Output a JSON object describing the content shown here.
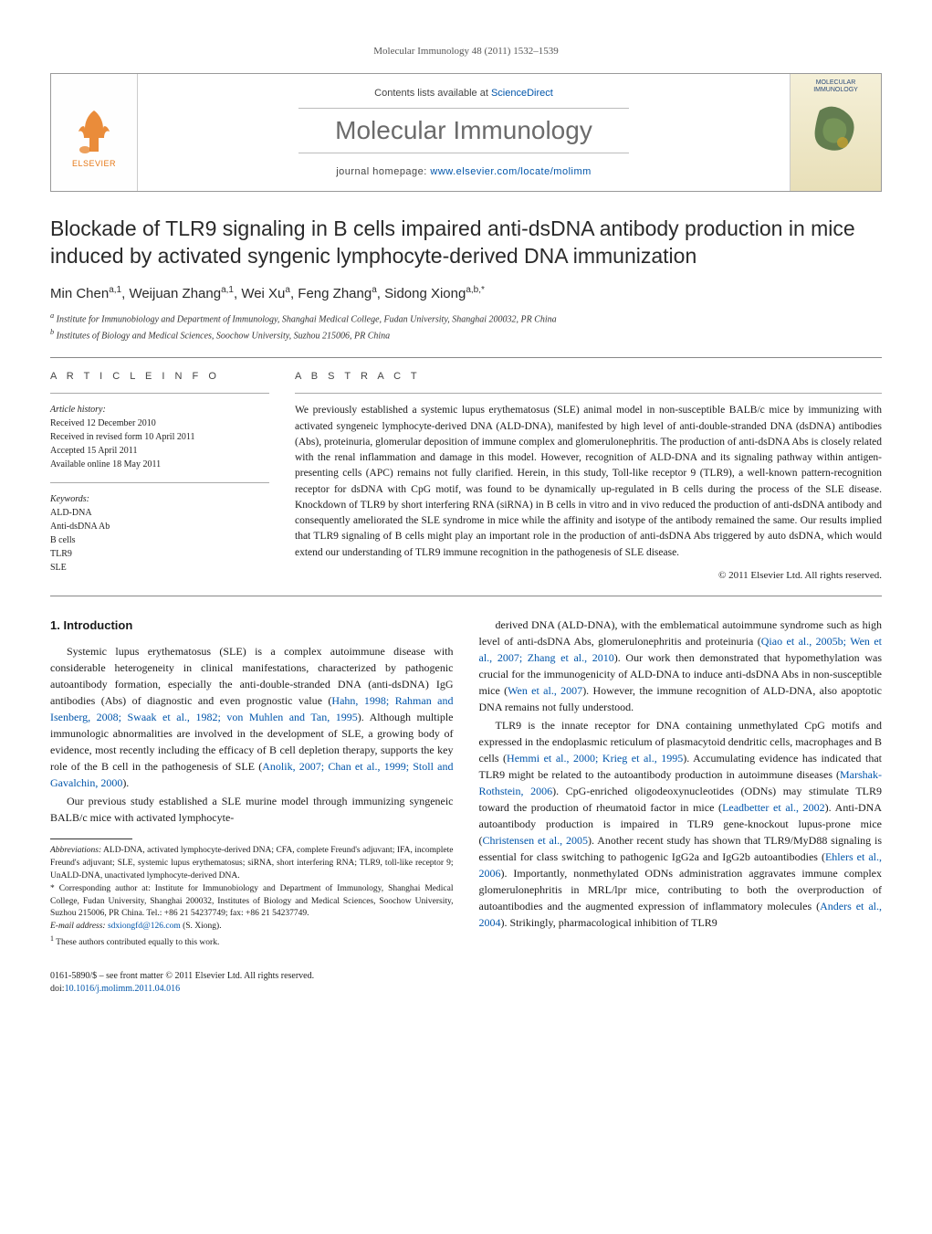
{
  "running_head": "Molecular Immunology 48 (2011) 1532–1539",
  "masthead": {
    "contents_prefix": "Contents lists available at ",
    "contents_link": "ScienceDirect",
    "journal": "Molecular Immunology",
    "homepage_prefix": "journal homepage: ",
    "homepage_url": "www.elsevier.com/locate/molimm",
    "publisher_word": "ELSEVIER",
    "cover_label": "MOLECULAR IMMUNOLOGY"
  },
  "colors": {
    "link": "#0055aa",
    "elsevier_orange": "#e67817",
    "rule": "#888888",
    "journal_gray": "#6b6b6b"
  },
  "title": "Blockade of TLR9 signaling in B cells impaired anti-dsDNA antibody production in mice induced by activated syngenic lymphocyte-derived DNA immunization",
  "authors_html": "Min Chen<sup>a,1</sup>, Weijuan Zhang<sup>a,1</sup>, Wei Xu<sup>a</sup>, Feng Zhang<sup>a</sup>, Sidong Xiong<sup>a,b,*</sup>",
  "affiliations": [
    "a Institute for Immunobiology and Department of Immunology, Shanghai Medical College, Fudan University, Shanghai 200032, PR China",
    "b Institutes of Biology and Medical Sciences, Soochow University, Suzhou 215006, PR China"
  ],
  "info": {
    "heading": "A R T I C L E   I N F O",
    "history_label": "Article history:",
    "history": [
      "Received 12 December 2010",
      "Received in revised form 10 April 2011",
      "Accepted 15 April 2011",
      "Available online 18 May 2011"
    ],
    "keywords_label": "Keywords:",
    "keywords": [
      "ALD-DNA",
      "Anti-dsDNA Ab",
      "B cells",
      "TLR9",
      "SLE"
    ]
  },
  "abstract": {
    "heading": "A B S T R A C T",
    "text": "We previously established a systemic lupus erythematosus (SLE) animal model in non-susceptible BALB/c mice by immunizing with activated syngeneic lymphocyte-derived DNA (ALD-DNA), manifested by high level of anti-double-stranded DNA (dsDNA) antibodies (Abs), proteinuria, glomerular deposition of immune complex and glomerulonephritis. The production of anti-dsDNA Abs is closely related with the renal inflammation and damage in this model. However, recognition of ALD-DNA and its signaling pathway within antigen-presenting cells (APC) remains not fully clarified. Herein, in this study, Toll-like receptor 9 (TLR9), a well-known pattern-recognition receptor for dsDNA with CpG motif, was found to be dynamically up-regulated in B cells during the process of the SLE disease. Knockdown of TLR9 by short interfering RNA (siRNA) in B cells in vitro and in vivo reduced the production of anti-dsDNA antibody and consequently ameliorated the SLE syndrome in mice while the affinity and isotype of the antibody remained the same. Our results implied that TLR9 signaling of B cells might play an important role in the production of anti-dsDNA Abs triggered by auto dsDNA, which would extend our understanding of TLR9 immune recognition in the pathogenesis of SLE disease.",
    "copyright": "© 2011 Elsevier Ltd. All rights reserved."
  },
  "body": {
    "h1": "1. Introduction",
    "p1a": "Systemic lupus erythematosus (SLE) is a complex autoimmune disease with considerable heterogeneity in clinical manifestations, characterized by pathogenic autoantibody formation, especially the anti-double-stranded DNA (anti-dsDNA) IgG antibodies (Abs) of diagnostic and even prognostic value (",
    "c1": "Hahn, 1998; Rahman and Isenberg, 2008; Swaak et al., 1982; von Muhlen and Tan, 1995",
    "p1b": "). Although multiple immunologic abnormalities are involved in the development of SLE, a growing body of evidence, most recently including the efficacy of B cell depletion therapy, supports the key role of the B cell in the pathogenesis of SLE (",
    "c2": "Anolik, 2007; Chan et al., 1999; Stoll and Gavalchin, 2000",
    "p1c": ").",
    "p2a": "Our previous study established a SLE murine model through immunizing syngeneic BALB/c mice with activated lymphocyte-",
    "p2b": "derived DNA (ALD-DNA), with the emblematical autoimmune syndrome such as high level of anti-dsDNA Abs, glomerulonephritis and proteinuria (",
    "c3": "Qiao et al., 2005b; Wen et al., 2007; Zhang et al., 2010",
    "p2c": "). Our work then demonstrated that hypomethylation was crucial for the immunogenicity of ALD-DNA to induce anti-dsDNA Abs in non-susceptible mice (",
    "c4": "Wen et al., 2007",
    "p2d": "). However, the immune recognition of ALD-DNA, also apoptotic DNA remains not fully understood.",
    "p3a": "TLR9 is the innate receptor for DNA containing unmethylated CpG motifs and expressed in the endoplasmic reticulum of plasmacytoid dendritic cells, macrophages and B cells (",
    "c5": "Hemmi et al., 2000; Krieg et al., 1995",
    "p3b": "). Accumulating evidence has indicated that TLR9 might be related to the autoantibody production in autoimmune diseases (",
    "c6": "Marshak-Rothstein, 2006",
    "p3c": "). CpG-enriched oligodeoxynucleotides (ODNs) may stimulate TLR9 toward the production of rheumatoid factor in mice (",
    "c7": "Leadbetter et al., 2002",
    "p3d": "). Anti-DNA autoantibody production is impaired in TLR9 gene-knockout lupus-prone mice (",
    "c8": "Christensen et al., 2005",
    "p3e": "). Another recent study has shown that TLR9/MyD88 signaling is essential for class switching to pathogenic IgG2a and IgG2b autoantibodies (",
    "c9": "Ehlers et al., 2006",
    "p3f": "). Importantly, nonmethylated ODNs administration aggravates immune complex glomerulonephritis in MRL/lpr mice, contributing to both the overproduction of autoantibodies and the augmented expression of inflammatory molecules (",
    "c10": "Anders et al., 2004",
    "p3g": "). Strikingly, pharmacological inhibition of TLR9"
  },
  "footnotes": {
    "abbr_label": "Abbreviations:",
    "abbr": " ALD-DNA, activated lymphocyte-derived DNA; CFA, complete Freund's adjuvant; IFA, incomplete Freund's adjuvant; SLE, systemic lupus erythematosus; siRNA, short interfering RNA; TLR9, toll-like receptor 9; UnALD-DNA, unactivated lymphocyte-derived DNA.",
    "corr": "* Corresponding author at: Institute for Immunobiology and Department of Immunology, Shanghai Medical College, Fudan University, Shanghai 200032, Institutes of Biology and Medical Sciences, Soochow University, Suzhou 215006, PR China. Tel.: +86 21 54237749; fax: +86 21 54237749.",
    "email_label": "E-mail address: ",
    "email": "sdxiongfd@126.com",
    "email_suffix": " (S. Xiong).",
    "equal": "1 These authors contributed equally to this work."
  },
  "footer": {
    "line1": "0161-5890/$ – see front matter © 2011 Elsevier Ltd. All rights reserved.",
    "doi_label": "doi:",
    "doi": "10.1016/j.molimm.2011.04.016"
  }
}
